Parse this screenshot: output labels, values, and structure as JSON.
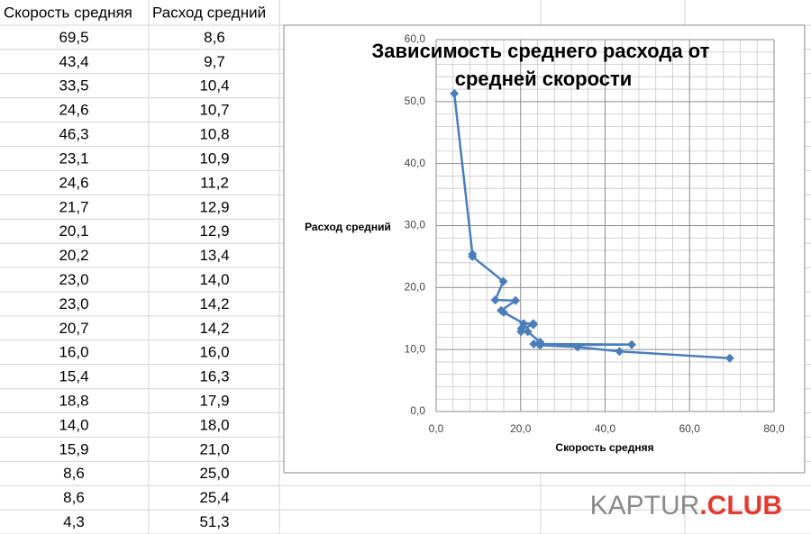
{
  "table": {
    "headers": [
      "Скорость средняя",
      "Расход средний"
    ],
    "rows": [
      [
        "69,5",
        "8,6"
      ],
      [
        "43,4",
        "9,7"
      ],
      [
        "33,5",
        "10,4"
      ],
      [
        "24,6",
        "10,7"
      ],
      [
        "46,3",
        "10,8"
      ],
      [
        "23,1",
        "10,9"
      ],
      [
        "24,6",
        "11,2"
      ],
      [
        "21,7",
        "12,9"
      ],
      [
        "20,1",
        "12,9"
      ],
      [
        "20,2",
        "13,4"
      ],
      [
        "23,0",
        "14,0"
      ],
      [
        "23,0",
        "14,2"
      ],
      [
        "20,7",
        "14,2"
      ],
      [
        "16,0",
        "16,0"
      ],
      [
        "15,4",
        "16,3"
      ],
      [
        "18,8",
        "17,9"
      ],
      [
        "14,0",
        "18,0"
      ],
      [
        "15,9",
        "21,0"
      ],
      [
        "8,6",
        "25,0"
      ],
      [
        "8,6",
        "25,4"
      ],
      [
        "4,3",
        "51,3"
      ]
    ]
  },
  "chart_data": {
    "type": "line",
    "title": "Зависимость среднего расхода от средней скорости",
    "x_label": "Скорость средняя",
    "y_label": "Расход средний",
    "x": [
      69.5,
      43.4,
      33.5,
      24.6,
      46.3,
      23.1,
      24.6,
      21.7,
      20.1,
      20.2,
      23.0,
      23.0,
      20.7,
      16.0,
      15.4,
      18.8,
      14.0,
      15.9,
      8.6,
      8.6,
      4.3
    ],
    "values": [
      8.6,
      9.7,
      10.4,
      10.7,
      10.8,
      10.9,
      11.2,
      12.9,
      12.9,
      13.4,
      14.0,
      14.2,
      14.2,
      16.0,
      16.3,
      17.9,
      18.0,
      21.0,
      25.0,
      25.4,
      51.3
    ],
    "color": "#4a7ebb",
    "xlim": [
      0,
      80
    ],
    "xticks": [
      {
        "value": 0,
        "label": "0,0"
      },
      {
        "value": 20,
        "label": "20,0"
      },
      {
        "value": 40,
        "label": "40,0"
      },
      {
        "value": 60,
        "label": "60,0"
      },
      {
        "value": 80,
        "label": "80,0"
      }
    ],
    "ylim": [
      0,
      60
    ],
    "yticks": [
      {
        "value": 0,
        "label": "0,0"
      },
      {
        "value": 10,
        "label": "10,0"
      },
      {
        "value": 20,
        "label": "20,0"
      },
      {
        "value": 30,
        "label": "30,0"
      },
      {
        "value": 40,
        "label": "40,0"
      },
      {
        "value": 50,
        "label": "50,0"
      },
      {
        "value": 60,
        "label": "60,0"
      }
    ],
    "grid": true
  },
  "watermark": [
    "KAPTUR",
    ".CLUB"
  ]
}
